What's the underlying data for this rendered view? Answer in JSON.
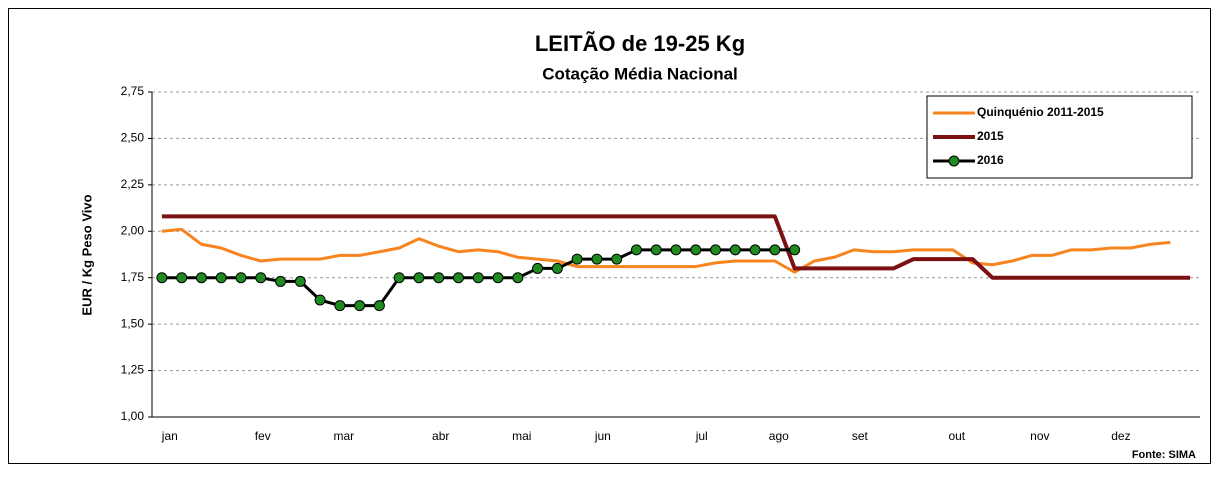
{
  "chart_data": {
    "type": "line",
    "title": "LEITÃO de 19-25 Kg",
    "subtitle": "Cotação Média Nacional",
    "y_label": "EUR / Kg Peso Vivo",
    "source": "Fonte: SIMA",
    "x": [
      1,
      2,
      3,
      4,
      5,
      6,
      7,
      8,
      9,
      10,
      11,
      12,
      13,
      14,
      15,
      16,
      17,
      18,
      19,
      20,
      21,
      22,
      23,
      24,
      25,
      26,
      27,
      28,
      29,
      30,
      31,
      32,
      33,
      34,
      35,
      36,
      37,
      38,
      39,
      40,
      41,
      42,
      43,
      44,
      45,
      46,
      47,
      48,
      49,
      50,
      51,
      52,
      53
    ],
    "xlim": [
      0.5,
      53.5
    ],
    "xticks": [
      {
        "value": 1.4,
        "label": "jan"
      },
      {
        "value": 6.1,
        "label": "fev"
      },
      {
        "value": 10.2,
        "label": "mar"
      },
      {
        "value": 15.1,
        "label": "abr"
      },
      {
        "value": 19.2,
        "label": "mai"
      },
      {
        "value": 23.3,
        "label": "jun"
      },
      {
        "value": 28.3,
        "label": "jul"
      },
      {
        "value": 32.2,
        "label": "ago"
      },
      {
        "value": 36.3,
        "label": "set"
      },
      {
        "value": 41.2,
        "label": "out"
      },
      {
        "value": 45.4,
        "label": "nov"
      },
      {
        "value": 49.5,
        "label": "dez"
      }
    ],
    "ylim": [
      1,
      2.75
    ],
    "yticks": [
      {
        "value": 1,
        "label": "1,00"
      },
      {
        "value": 1.25,
        "label": "1,25"
      },
      {
        "value": 1.5,
        "label": "1,50"
      },
      {
        "value": 1.75,
        "label": "1,75"
      },
      {
        "value": 2,
        "label": "2,00"
      },
      {
        "value": 2.25,
        "label": "2,25"
      },
      {
        "value": 2.5,
        "label": "2,50"
      },
      {
        "value": 2.75,
        "label": "2,75"
      }
    ],
    "grid": true,
    "legend": "upper right",
    "series": [
      {
        "name": "Quinquénio 2011-2015",
        "color": "#f7841f",
        "values": [
          2.0,
          2.01,
          1.93,
          1.91,
          1.87,
          1.84,
          1.85,
          1.85,
          1.85,
          1.87,
          1.87,
          1.89,
          1.91,
          1.96,
          1.92,
          1.89,
          1.9,
          1.89,
          1.86,
          1.85,
          1.84,
          1.81,
          1.81,
          1.81,
          1.81,
          1.81,
          1.81,
          1.81,
          1.83,
          1.84,
          1.84,
          1.84,
          1.78,
          1.84,
          1.86,
          1.9,
          1.89,
          1.89,
          1.9,
          1.9,
          1.9,
          1.83,
          1.82,
          1.84,
          1.87,
          1.87,
          1.9,
          1.9,
          1.91,
          1.91,
          1.93,
          1.94,
          null
        ]
      },
      {
        "name": "2015",
        "color": "#7b1113",
        "values": [
          2.08,
          2.08,
          2.08,
          2.08,
          2.08,
          2.08,
          2.08,
          2.08,
          2.08,
          2.08,
          2.08,
          2.08,
          2.08,
          2.08,
          2.08,
          2.08,
          2.08,
          2.08,
          2.08,
          2.08,
          2.08,
          2.08,
          2.08,
          2.08,
          2.08,
          2.08,
          2.08,
          2.08,
          2.08,
          2.08,
          2.08,
          2.08,
          1.8,
          1.8,
          1.8,
          1.8,
          1.8,
          1.8,
          1.85,
          1.85,
          1.85,
          1.85,
          1.75,
          1.75,
          1.75,
          1.75,
          1.75,
          1.75,
          1.75,
          1.75,
          1.75,
          1.75,
          1.75
        ]
      },
      {
        "name": "2016",
        "color": "#000000",
        "marker": "circle",
        "marker_color": "#1f8a1f",
        "values": [
          1.75,
          1.75,
          1.75,
          1.75,
          1.75,
          1.75,
          1.73,
          1.73,
          1.63,
          1.6,
          1.6,
          1.6,
          1.75,
          1.75,
          1.75,
          1.75,
          1.75,
          1.75,
          1.75,
          1.8,
          1.8,
          1.85,
          1.85,
          1.85,
          1.9,
          1.9,
          1.9,
          1.9,
          1.9,
          1.9,
          1.9,
          1.9,
          1.9,
          null,
          null,
          null,
          null,
          null,
          null,
          null,
          null,
          null,
          null,
          null,
          null,
          null,
          null,
          null,
          null,
          null,
          null,
          null,
          null
        ]
      }
    ]
  }
}
